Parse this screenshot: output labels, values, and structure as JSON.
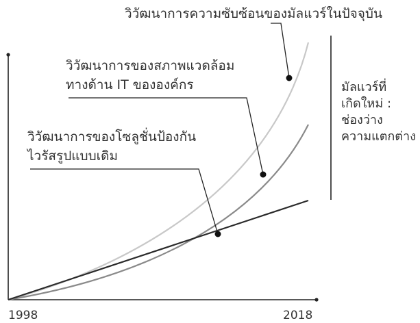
{
  "chart_data": {
    "type": "line",
    "x_labels": [
      "1998",
      "2018"
    ],
    "xlim": [
      1998,
      2018
    ],
    "series": [
      {
        "name": "วิวัฒนาการความซับซ้อนของมัลแวร์ในปัจจุบัน",
        "values": [
          0,
          100
        ],
        "color": "#c8c8c8"
      },
      {
        "name": "วิวัฒนาการของสภาพแวดล้อมทางด้าน IT ขององค์กร",
        "values": [
          0,
          68
        ],
        "color": "#8a8a8a"
      },
      {
        "name": "วิวัฒนาการของโซลูชั่นป้องกันไวรัสรูปแบบเดิม",
        "values": [
          0,
          39
        ],
        "color": "#2a2a2a"
      }
    ],
    "annotations": {
      "top": "วิวัฒนาการความซับซ้อนของมัลแวร์ในปัจจุบัน",
      "middle_line1": "วิวัฒนาการของสภาพแวดล้อม",
      "middle_line2": "ทางด้าน IT ขององค์กร",
      "bottom_line1": "วิวัฒนาการของโซลูชั่นป้องกัน",
      "bottom_line2": "ไวรัสรูปแบบเดิม"
    },
    "side_label": {
      "line1": "มัลแวร์ที่",
      "line2": "เกิดใหม่ :",
      "line3": "ช่องว่าง",
      "line4": "ความแตกต่าง"
    },
    "grid": false,
    "legend": "none"
  }
}
